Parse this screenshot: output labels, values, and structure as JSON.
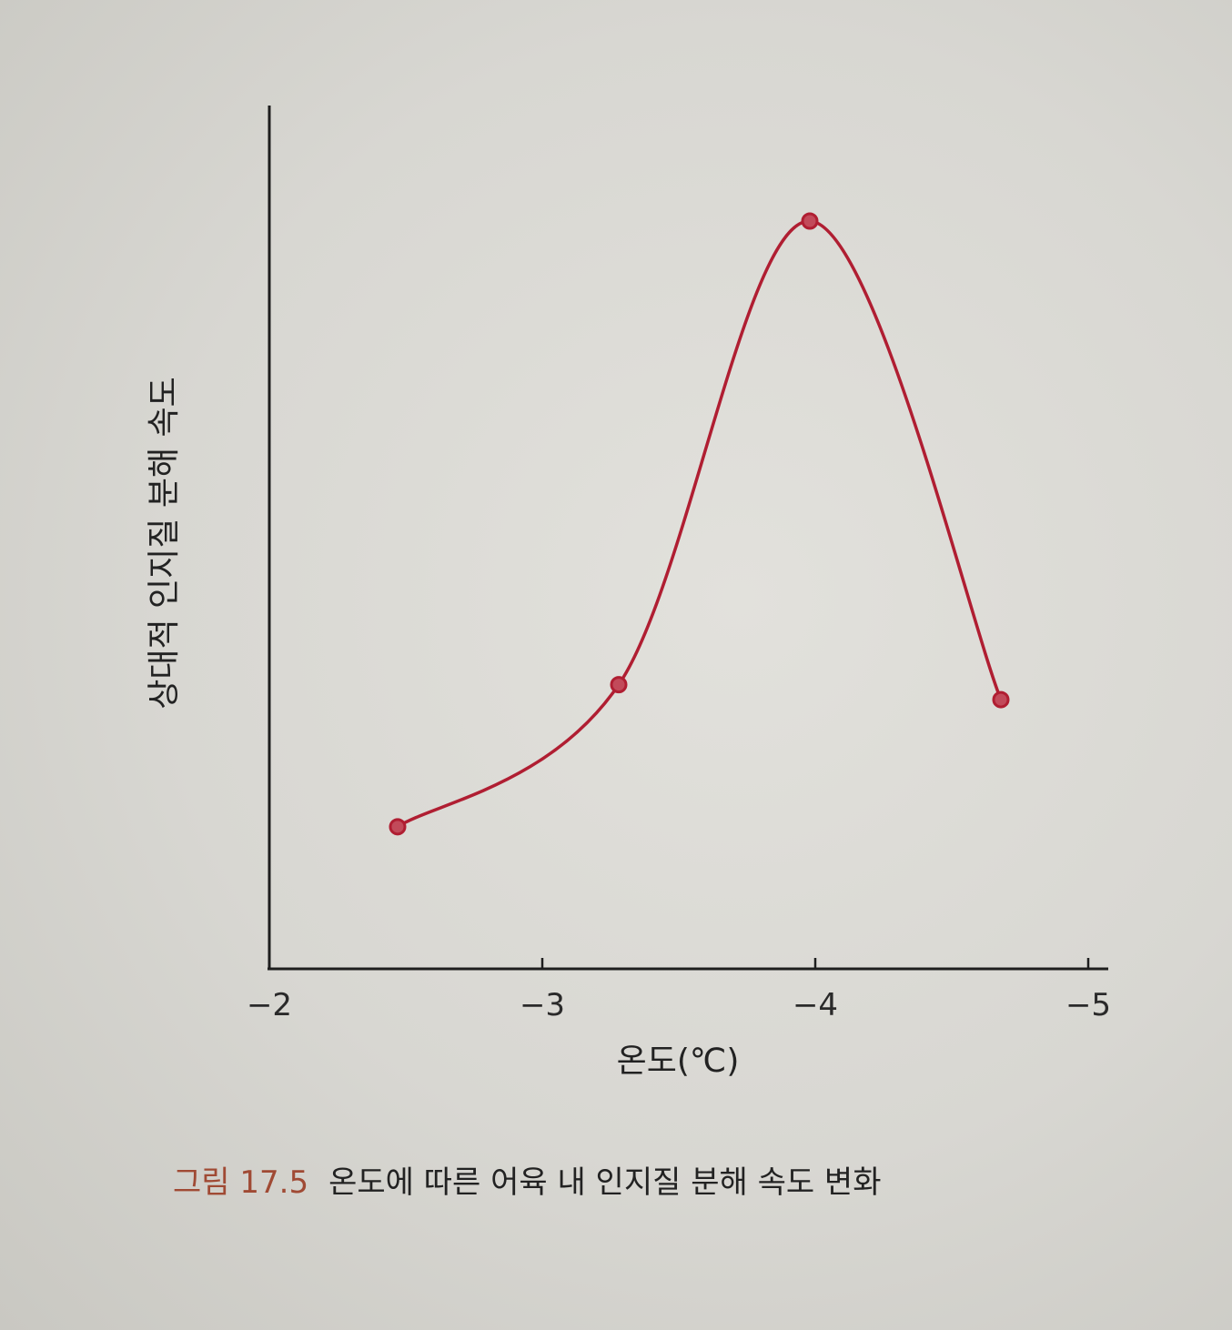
{
  "caption": {
    "label": "그림 17.5",
    "text": "온도에 따른 어육 내 인지질 분해 속도 변화"
  },
  "colors": {
    "series": "#b01e32",
    "point_fill": "#c24a5a",
    "label_accent": "#a04a34"
  },
  "chart_data": {
    "type": "line",
    "title": "",
    "xlabel": "온도(℃)",
    "ylabel": "상대적 인지질 분해 속도",
    "xlim": [
      -2,
      -5
    ],
    "ylim": [
      0,
      1
    ],
    "x_ticks": [
      -2,
      -3,
      -4,
      -5
    ],
    "x_tick_labels": [
      "−2",
      "−3",
      "−4",
      "−5"
    ],
    "y_ticks": [],
    "grid": false,
    "smooth": true,
    "series": [
      {
        "points": [
          {
            "x": -2.47,
            "y": 0.19
          },
          {
            "x": -3.28,
            "y": 0.38
          },
          {
            "x": -3.98,
            "y": 1.0
          },
          {
            "x": -4.68,
            "y": 0.36
          }
        ]
      }
    ]
  }
}
